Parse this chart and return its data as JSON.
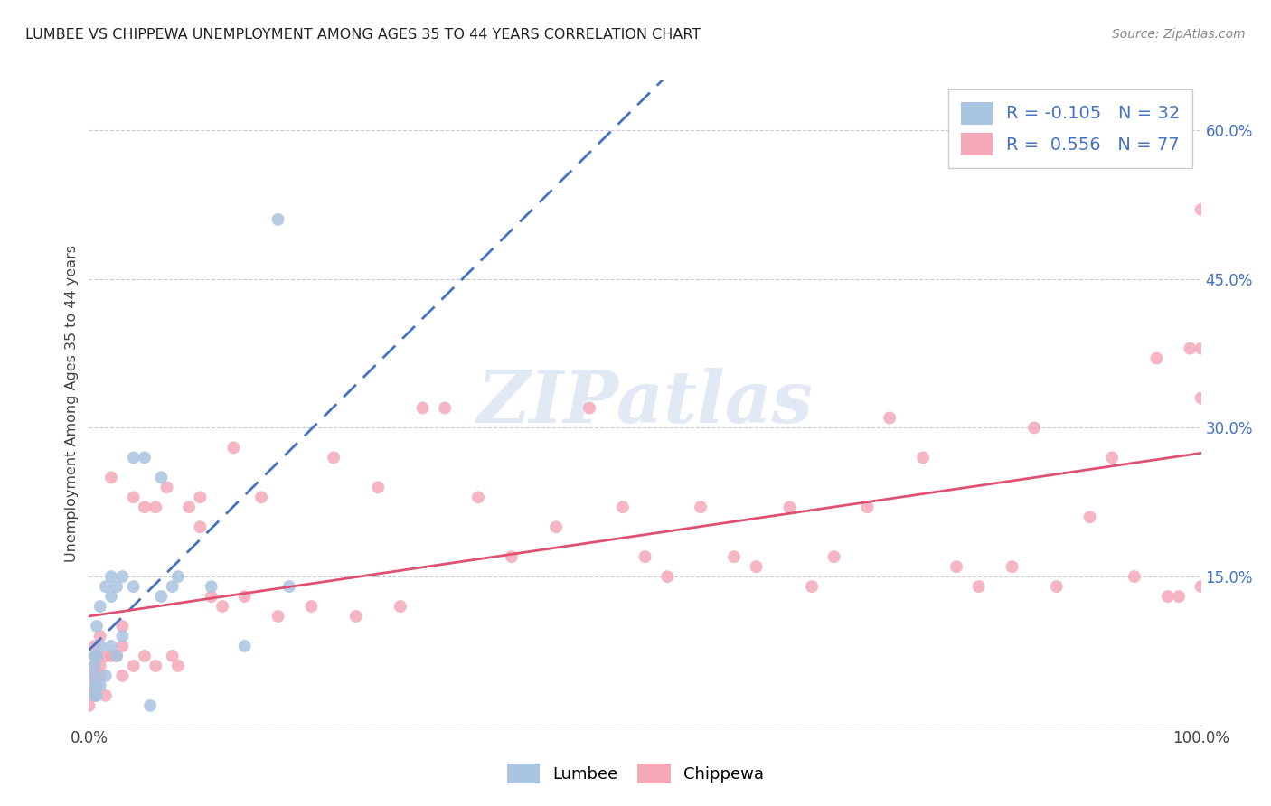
{
  "title": "LUMBEE VS CHIPPEWA UNEMPLOYMENT AMONG AGES 35 TO 44 YEARS CORRELATION CHART",
  "source": "Source: ZipAtlas.com",
  "ylabel": "Unemployment Among Ages 35 to 44 years",
  "xlim": [
    0.0,
    1.0
  ],
  "ylim": [
    0.0,
    0.65
  ],
  "xtick_pos": [
    0.0,
    0.1,
    0.2,
    0.3,
    0.4,
    0.5,
    0.6,
    0.7,
    0.8,
    0.9,
    1.0
  ],
  "xticklabels": [
    "0.0%",
    "",
    "",
    "",
    "",
    "",
    "",
    "",
    "",
    "",
    "100.0%"
  ],
  "ytick_pos": [
    0.0,
    0.15,
    0.3,
    0.45,
    0.6
  ],
  "yticklabels_right": [
    "",
    "15.0%",
    "30.0%",
    "45.0%",
    "60.0%"
  ],
  "lumbee_R": -0.105,
  "lumbee_N": 32,
  "chippewa_R": 0.556,
  "chippewa_N": 77,
  "lumbee_scatter_color": "#a8c4e0",
  "chippewa_scatter_color": "#f4a8b8",
  "lumbee_line_color": "#4472c4",
  "chippewa_line_color": "#e05070",
  "legend_text_color": "#4472c4",
  "watermark": "ZIPatlas",
  "lumbee_x": [
    0.005,
    0.005,
    0.005,
    0.005,
    0.005,
    0.007,
    0.007,
    0.007,
    0.01,
    0.01,
    0.01,
    0.015,
    0.015,
    0.02,
    0.02,
    0.02,
    0.025,
    0.025,
    0.03,
    0.03,
    0.04,
    0.04,
    0.05,
    0.055,
    0.065,
    0.065,
    0.075,
    0.08,
    0.11,
    0.14,
    0.17,
    0.18
  ],
  "lumbee_y": [
    0.03,
    0.04,
    0.05,
    0.06,
    0.07,
    0.03,
    0.07,
    0.1,
    0.04,
    0.08,
    0.12,
    0.05,
    0.14,
    0.08,
    0.13,
    0.15,
    0.07,
    0.14,
    0.09,
    0.15,
    0.14,
    0.27,
    0.27,
    0.02,
    0.13,
    0.25,
    0.14,
    0.15,
    0.14,
    0.08,
    0.51,
    0.14
  ],
  "chippewa_x": [
    0.0,
    0.0,
    0.0,
    0.005,
    0.005,
    0.005,
    0.005,
    0.007,
    0.007,
    0.01,
    0.01,
    0.01,
    0.015,
    0.015,
    0.02,
    0.02,
    0.025,
    0.03,
    0.03,
    0.03,
    0.04,
    0.04,
    0.05,
    0.05,
    0.06,
    0.06,
    0.07,
    0.075,
    0.08,
    0.09,
    0.1,
    0.1,
    0.11,
    0.12,
    0.13,
    0.14,
    0.155,
    0.17,
    0.2,
    0.22,
    0.24,
    0.26,
    0.28,
    0.3,
    0.32,
    0.35,
    0.38,
    0.42,
    0.45,
    0.48,
    0.5,
    0.52,
    0.55,
    0.58,
    0.6,
    0.63,
    0.65,
    0.67,
    0.7,
    0.72,
    0.75,
    0.78,
    0.8,
    0.83,
    0.85,
    0.87,
    0.9,
    0.92,
    0.94,
    0.96,
    0.97,
    0.98,
    0.99,
    1.0,
    1.0,
    1.0,
    1.0
  ],
  "chippewa_y": [
    0.02,
    0.04,
    0.05,
    0.03,
    0.05,
    0.06,
    0.08,
    0.04,
    0.07,
    0.05,
    0.06,
    0.09,
    0.03,
    0.07,
    0.07,
    0.25,
    0.07,
    0.05,
    0.08,
    0.1,
    0.06,
    0.23,
    0.07,
    0.22,
    0.06,
    0.22,
    0.24,
    0.07,
    0.06,
    0.22,
    0.2,
    0.23,
    0.13,
    0.12,
    0.28,
    0.13,
    0.23,
    0.11,
    0.12,
    0.27,
    0.11,
    0.24,
    0.12,
    0.32,
    0.32,
    0.23,
    0.17,
    0.2,
    0.32,
    0.22,
    0.17,
    0.15,
    0.22,
    0.17,
    0.16,
    0.22,
    0.14,
    0.17,
    0.22,
    0.31,
    0.27,
    0.16,
    0.14,
    0.16,
    0.3,
    0.14,
    0.21,
    0.27,
    0.15,
    0.37,
    0.13,
    0.13,
    0.38,
    0.52,
    0.33,
    0.14,
    0.38
  ]
}
